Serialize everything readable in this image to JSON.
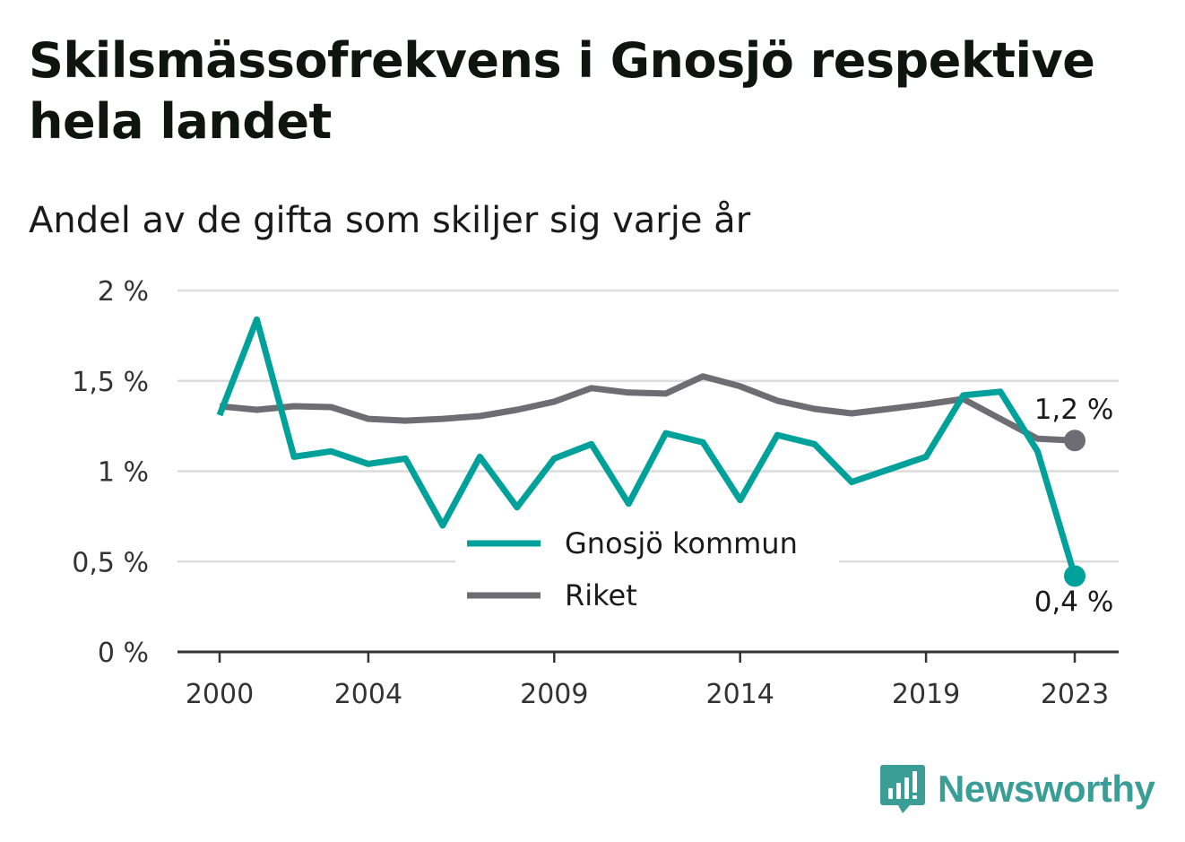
{
  "title": "Skilsmässofrekvens i Gnosjö respektive hela landet",
  "subtitle": "Andel av de gifta som skiljer sig varje år",
  "brand": {
    "name": "Newsworthy",
    "icon": "bar-chart-speech-bubble-icon",
    "color": "#3a9d96"
  },
  "chart_data": {
    "type": "line",
    "x": [
      2000,
      2001,
      2002,
      2003,
      2004,
      2005,
      2006,
      2007,
      2008,
      2009,
      2010,
      2011,
      2012,
      2013,
      2014,
      2015,
      2016,
      2017,
      2018,
      2019,
      2020,
      2021,
      2022,
      2023
    ],
    "x_ticks": [
      2000,
      2004,
      2009,
      2014,
      2019,
      2023
    ],
    "x_tick_labels": [
      "2000",
      "2004",
      "2009",
      "2014",
      "2019",
      "2023"
    ],
    "xlim": [
      2000,
      2023
    ],
    "ylim": [
      0,
      2
    ],
    "y_ticks": [
      0,
      0.5,
      1,
      1.5,
      2
    ],
    "y_tick_labels": [
      "0 %",
      "0,5 %",
      "1 %",
      "1,5 %",
      "2 %"
    ],
    "grid": "horizontal",
    "legend_position": "bottom-center",
    "series": [
      {
        "name": "Gnosjö kommun",
        "color": "#00a19a",
        "values": [
          1.31,
          1.84,
          1.08,
          1.11,
          1.04,
          1.07,
          0.7,
          1.08,
          0.8,
          1.07,
          1.15,
          0.82,
          1.21,
          1.16,
          0.84,
          1.2,
          1.15,
          0.94,
          1.01,
          1.08,
          1.42,
          1.44,
          1.11,
          0.42
        ],
        "end_label": "0,4 %"
      },
      {
        "name": "Riket",
        "color": "#6e6d74",
        "values": [
          1.36,
          1.34,
          1.36,
          1.355,
          1.29,
          1.28,
          1.29,
          1.305,
          1.34,
          1.385,
          1.46,
          1.435,
          1.43,
          1.525,
          1.47,
          1.39,
          1.345,
          1.32,
          1.345,
          1.37,
          1.4,
          1.29,
          1.18,
          1.17
        ],
        "end_label": "1,2 %"
      }
    ]
  }
}
